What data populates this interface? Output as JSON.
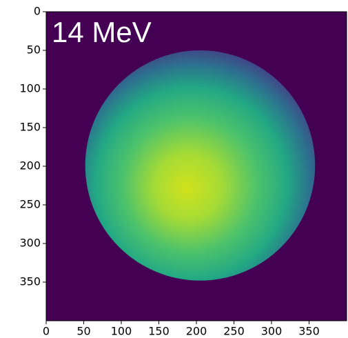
{
  "chart_data": {
    "type": "image",
    "annotation": "14 MeV",
    "xlim": [
      0,
      400
    ],
    "ylim": [
      400,
      0
    ],
    "xticks": [
      0,
      50,
      100,
      150,
      200,
      250,
      300,
      350
    ],
    "yticks": [
      0,
      50,
      100,
      150,
      200,
      250,
      300,
      350
    ],
    "background_color": "#440154",
    "disc": {
      "center_x": 205,
      "center_y": 199,
      "radius_x": 153,
      "radius_y": 149
    }
  }
}
